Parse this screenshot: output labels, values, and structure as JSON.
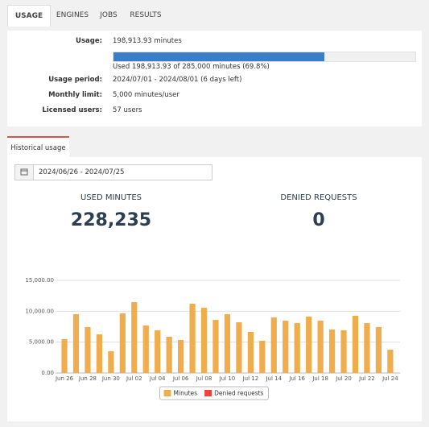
{
  "tabs": [
    "USAGE",
    "ENGINES",
    "JOBS",
    "RESULTS"
  ],
  "usage": {
    "usage_label": "Usage:",
    "usage_value": "198,913.93 minutes",
    "progress": {
      "label": "Used 198,913.93 of 285,000 minutes (69.8%)",
      "value": 69.8
    },
    "period_label": "Usage period:",
    "period_value": "2024/07/01 - 2024/08/01 (6 days left)",
    "limit_label": "Monthly limit:",
    "limit_value": "5,000 minutes/user",
    "users_label": "Licensed users:",
    "users_value": "57 users"
  },
  "history": {
    "tab": "Historical usage",
    "date_range": "2024/06/26 - 2024/07/25",
    "used_label": "USED MINUTES",
    "used_value": "228,235",
    "denied_label": "DENIED REQUESTS",
    "denied_value": "0"
  },
  "chart_data": {
    "type": "bar",
    "categories": [
      "Jun 26",
      null,
      "Jun 28",
      null,
      "Jun 30",
      null,
      "Jul 02",
      null,
      "Jul 04",
      null,
      "Jul 06",
      null,
      "Jul 08",
      null,
      "Jul 10",
      null,
      "Jul 12",
      null,
      "Jul 14",
      null,
      "Jul 16",
      null,
      "Jul 18",
      null,
      "Jul 20",
      null,
      "Jul 22",
      null,
      "Jul 24"
    ],
    "series": [
      {
        "name": "Minutes",
        "color": "#f0ad4e",
        "values": [
          5480,
          9520,
          7430,
          6260,
          3520,
          9650,
          11470,
          7690,
          6910,
          5870,
          5350,
          11210,
          10560,
          8600,
          9520,
          8210,
          6650,
          5220,
          9000,
          8470,
          8080,
          9130,
          8470,
          7040,
          6910,
          9260,
          8080,
          7430,
          3780
        ]
      },
      {
        "name": "Denied requests",
        "color": "#e8473f",
        "values": [
          0,
          0,
          0,
          0,
          0,
          0,
          0,
          0,
          0,
          0,
          0,
          0,
          0,
          0,
          0,
          0,
          0,
          0,
          0,
          0,
          0,
          0,
          0,
          0,
          0,
          0,
          0,
          0,
          0
        ]
      }
    ],
    "ylim": [
      0,
      15000
    ],
    "yticks": [
      {
        "value": 0,
        "label": "0.00"
      },
      {
        "value": 5000,
        "label": "5,000.00"
      },
      {
        "value": 10000,
        "label": "10,000.00"
      },
      {
        "value": 15000,
        "label": "15,000.00"
      }
    ],
    "grid": true,
    "legend": "bottom"
  }
}
